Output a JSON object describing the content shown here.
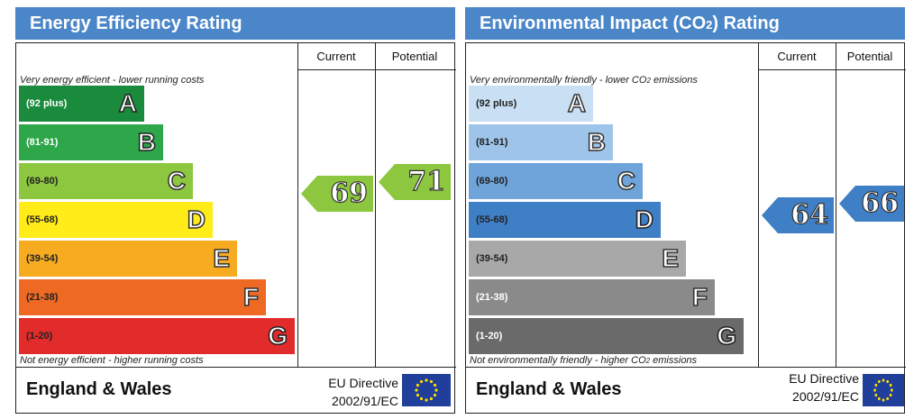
{
  "chart_data": [
    {
      "type": "bar",
      "title": "Energy Efficiency Rating",
      "columns": [
        "Current",
        "Potential"
      ],
      "caption_top": "Very energy efficient - lower running costs",
      "caption_bottom": "Not energy efficient - higher running costs",
      "footer_country": "England & Wales",
      "footer_directive": "EU Directive",
      "footer_code": "2002/91/EC",
      "bands": [
        {
          "range": "(92 plus)",
          "letter": "A",
          "color": "#1a8a3c",
          "range_color": "#ffffff"
        },
        {
          "range": "(81-91)",
          "letter": "B",
          "color": "#2ea64a",
          "range_color": "#ffffff"
        },
        {
          "range": "(69-80)",
          "letter": "C",
          "color": "#8dc63f",
          "range_color": "#222222"
        },
        {
          "range": "(55-68)",
          "letter": "D",
          "color": "#ffec18",
          "range_color": "#222222"
        },
        {
          "range": "(39-54)",
          "letter": "E",
          "color": "#f7ab21",
          "range_color": "#222222"
        },
        {
          "range": "(21-38)",
          "letter": "F",
          "color": "#ee6a24",
          "range_color": "#222222"
        },
        {
          "range": "(1-20)",
          "letter": "G",
          "color": "#e22b2b",
          "range_color": "#222222"
        }
      ],
      "current": 69,
      "potential": 71,
      "current_band": "C",
      "potential_band": "C",
      "arrow_color": "#8dc63f"
    },
    {
      "type": "bar",
      "title_pre": "Environmental Impact (CO",
      "title_sub": "2",
      "title_post": ") Rating",
      "columns": [
        "Current",
        "Potential"
      ],
      "caption_top_pre": "Very environmentally friendly - lower CO",
      "caption_top_sub": "2",
      "caption_top_post": " emissions",
      "caption_bottom_pre": "Not environmentally friendly - higher CO",
      "caption_bottom_sub": "2",
      "caption_bottom_post": " emissions",
      "footer_country": "England & Wales",
      "footer_directive": "EU Directive",
      "footer_code": "2002/91/EC",
      "bands": [
        {
          "range": "(92 plus)",
          "letter": "A",
          "color": "#c9e0f4",
          "range_color": "#222222"
        },
        {
          "range": "(81-91)",
          "letter": "B",
          "color": "#9ec4ea",
          "range_color": "#222222"
        },
        {
          "range": "(69-80)",
          "letter": "C",
          "color": "#6ea4da",
          "range_color": "#222222"
        },
        {
          "range": "(55-68)",
          "letter": "D",
          "color": "#3f7fc6",
          "range_color": "#222222"
        },
        {
          "range": "(39-54)",
          "letter": "E",
          "color": "#a8a8a8",
          "range_color": "#222222"
        },
        {
          "range": "(21-38)",
          "letter": "F",
          "color": "#8a8a8a",
          "range_color": "#ffffff"
        },
        {
          "range": "(1-20)",
          "letter": "G",
          "color": "#6a6a6a",
          "range_color": "#ffffff"
        }
      ],
      "current": 64,
      "potential": 66,
      "current_band": "D",
      "potential_band": "D",
      "arrow_color": "#3f7fc6"
    }
  ]
}
